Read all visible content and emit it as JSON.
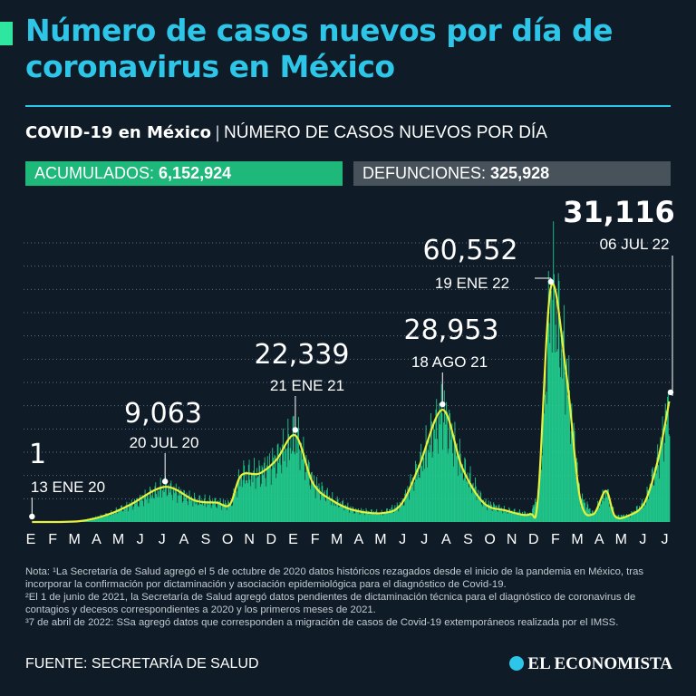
{
  "header": {
    "title": "Número de casos nuevos por día de coronavirus en México",
    "subtitle_bold": "COVID-19 en México",
    "subtitle_separator": "|",
    "subtitle_light": "NÚMERO DE CASOS NUEVOS POR DÍA"
  },
  "badges": {
    "acumulados_label": "ACUMULADOS:",
    "acumulados_value": "6,152,924",
    "defunciones_label": "DEFUNCIONES:",
    "defunciones_value": "325,928"
  },
  "colors": {
    "background": "#0f1c28",
    "title": "#2ec6e8",
    "bars": "#22d694",
    "trend_line": "#e8f03a",
    "badge_acumulados": "#1db87a",
    "badge_defunciones": "#48525b"
  },
  "chart_data": {
    "type": "bar",
    "x_ticks": [
      "E",
      "F",
      "M",
      "A",
      "M",
      "J",
      "J",
      "A",
      "S",
      "O",
      "N",
      "D",
      "E",
      "F",
      "M",
      "A",
      "M",
      "J",
      "J",
      "A",
      "S",
      "O",
      "N",
      "D",
      "F",
      "M",
      "A",
      "M",
      "J",
      "J"
    ],
    "series": [
      {
        "type": "bar",
        "description_of_values": "daily new cases",
        "points": [
          {
            "date": "2020-01-13",
            "value": 1
          },
          {
            "date": "2020-03-20",
            "value": 200
          },
          {
            "date": "2020-05-01",
            "value": 2000
          },
          {
            "date": "2020-06-01",
            "value": 4500
          },
          {
            "date": "2020-07-20",
            "value": 9063
          },
          {
            "date": "2020-09-01",
            "value": 5500
          },
          {
            "date": "2020-10-01",
            "value": 5000
          },
          {
            "date": "2020-10-20",
            "value": 4500
          },
          {
            "date": "2020-11-05",
            "value": 12000
          },
          {
            "date": "2020-12-01",
            "value": 12500
          },
          {
            "date": "2020-12-25",
            "value": 16000
          },
          {
            "date": "2021-01-21",
            "value": 22339
          },
          {
            "date": "2021-02-15",
            "value": 10000
          },
          {
            "date": "2021-03-15",
            "value": 5500
          },
          {
            "date": "2021-04-15",
            "value": 3000
          },
          {
            "date": "2021-05-25",
            "value": 2300
          },
          {
            "date": "2021-06-20",
            "value": 4500
          },
          {
            "date": "2021-07-15",
            "value": 14000
          },
          {
            "date": "2021-08-18",
            "value": 28953
          },
          {
            "date": "2021-09-15",
            "value": 14000
          },
          {
            "date": "2021-10-15",
            "value": 5000
          },
          {
            "date": "2021-11-15",
            "value": 3000
          },
          {
            "date": "2021-12-20",
            "value": 2000
          },
          {
            "date": "2022-01-01",
            "value": 7000
          },
          {
            "date": "2022-01-19",
            "value": 60552
          },
          {
            "date": "2022-02-10",
            "value": 38000
          },
          {
            "date": "2022-03-01",
            "value": 6500
          },
          {
            "date": "2022-03-20",
            "value": 2000
          },
          {
            "date": "2022-04-07",
            "value": 8000
          },
          {
            "date": "2022-04-20",
            "value": 1500
          },
          {
            "date": "2022-05-10",
            "value": 1700
          },
          {
            "date": "2022-06-01",
            "value": 5000
          },
          {
            "date": "2022-06-20",
            "value": 16000
          },
          {
            "date": "2022-07-06",
            "value": 31116
          }
        ]
      }
    ],
    "annotations": [
      {
        "date": "2020-01-13",
        "value_label": "1",
        "date_label": "13 ENE 20"
      },
      {
        "date": "2020-07-20",
        "value_label": "9,063",
        "date_label": "20 JUL 20"
      },
      {
        "date": "2021-01-21",
        "value_label": "22,339",
        "date_label": "21 ENE 21"
      },
      {
        "date": "2021-08-18",
        "value_label": "28,953",
        "date_label": "18 AGO 21"
      },
      {
        "date": "2022-01-19",
        "value_label": "60,552",
        "date_label": "19 ENE 22"
      },
      {
        "date": "2022-07-06",
        "value_label": "31,116",
        "date_label": "06 JUL 22"
      }
    ],
    "grid": true,
    "x_range": [
      "2020-01-01",
      "2022-07-08"
    ],
    "y_range": [
      0,
      72000
    ]
  },
  "notes": {
    "note1": "Nota: ¹La Secretaría de Salud agregó el 5 de octubre de 2020 datos históricos rezagados desde el inicio de la pandemia en México, tras incorporar la confirmación por dictaminación y asociación epidemiológica para el diagnóstico de Covid-19.",
    "note2": "²El 1 de junio de 2021, la Secretaría de Salud agregó datos pendientes de dictaminación técnica para el diagnóstico de coronavirus de contagios y decesos correspondientes a 2020 y los primeros meses de 2021.",
    "note3": "³7 de abril de 2022: SSa agregó datos que corresponden a migración de casos de Covid-19 extemporáneos realizada por el IMSS."
  },
  "footer": {
    "source": "FUENTE: SECRETARÍA DE SALUD",
    "logo": "EL ECONOMISTA"
  }
}
